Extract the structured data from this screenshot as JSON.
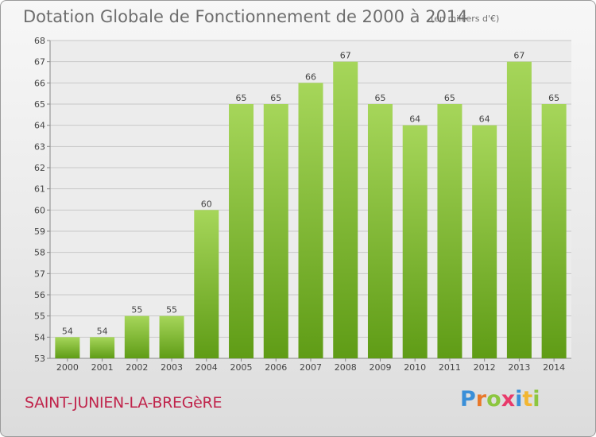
{
  "title": "Dotation Globale de Fonctionnement de 2000 à 2014",
  "subtitle": "(en milliers d'€)",
  "commune": "SAINT-JUNIEN-LA-BREGèRE",
  "logo": {
    "text": "Proxiti",
    "letters": [
      {
        "ch": "P",
        "color": "#3a8fd8"
      },
      {
        "ch": "r",
        "color": "#e8782a"
      },
      {
        "ch": "o",
        "color": "#8cc63f"
      },
      {
        "ch": "x",
        "color": "#e83a6a"
      },
      {
        "ch": "i",
        "color": "#3a8fd8"
      },
      {
        "ch": "t",
        "color": "#f2b632"
      },
      {
        "ch": "i",
        "color": "#8cc63f"
      }
    ]
  },
  "colors": {
    "bar_top": "#a6d65a",
    "bar_bottom": "#5f9c16",
    "axis_text": "#444444",
    "grid": "#c8c8c8",
    "title": "#6e6e6e",
    "commune": "#c0244b"
  },
  "chart_data": {
    "type": "bar",
    "title": "Dotation Globale de Fonctionnement de 2000 à 2014",
    "unit": "(en milliers d'€)",
    "categories": [
      "2000",
      "2001",
      "2002",
      "2003",
      "2004",
      "2005",
      "2006",
      "2007",
      "2008",
      "2009",
      "2010",
      "2011",
      "2012",
      "2013",
      "2014"
    ],
    "values": [
      54,
      54,
      55,
      55,
      60,
      65,
      65,
      66,
      67,
      65,
      64,
      65,
      64,
      67,
      65
    ],
    "ylim": [
      53,
      68
    ],
    "yticks": [
      53,
      54,
      55,
      56,
      57,
      58,
      59,
      60,
      61,
      62,
      63,
      64,
      65,
      66,
      67,
      68
    ],
    "grid": true,
    "legend": "none",
    "xlabel": "",
    "ylabel": ""
  }
}
